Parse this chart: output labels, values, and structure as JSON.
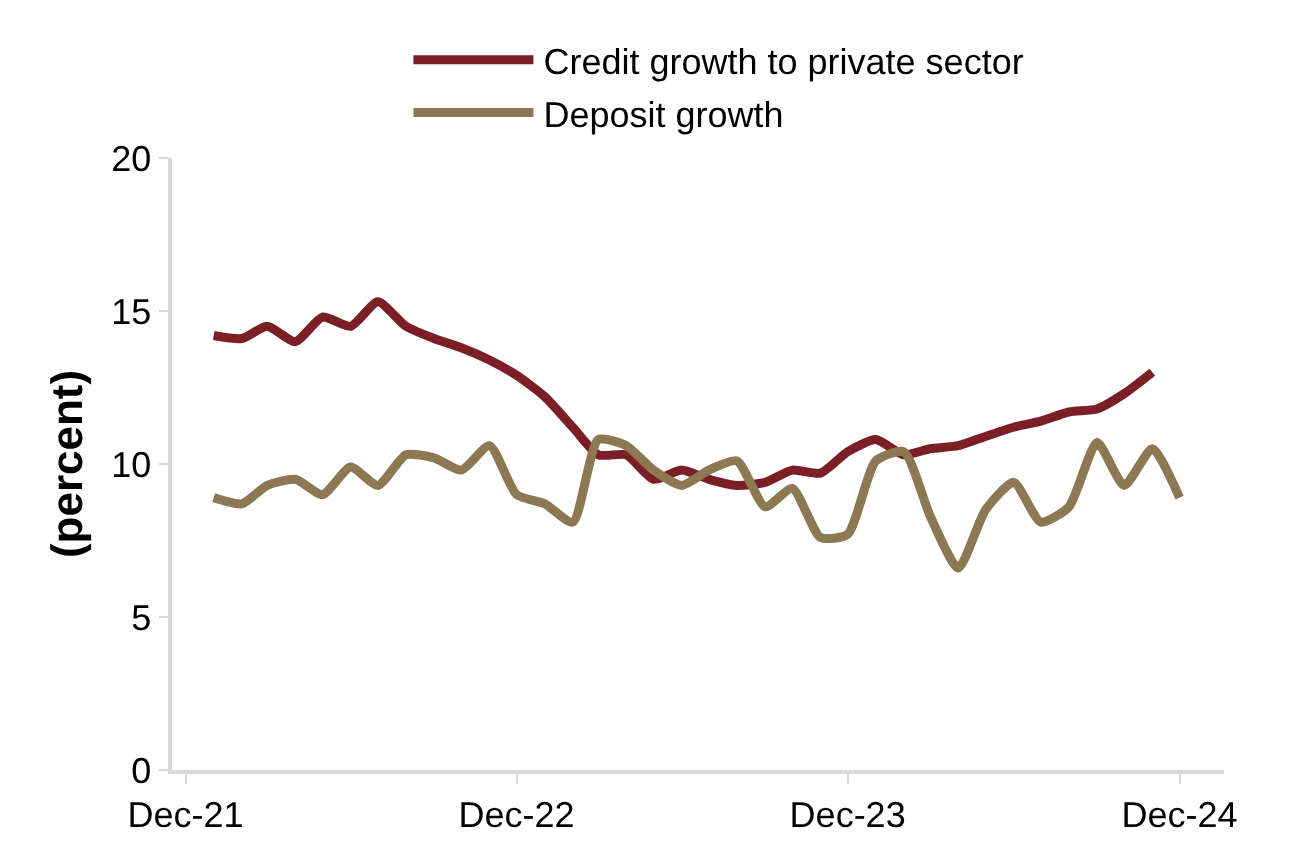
{
  "chart_data": {
    "type": "line",
    "ylabel": "(percent)",
    "x": [
      "2022-01",
      "2022-02",
      "2022-03",
      "2022-04",
      "2022-05",
      "2022-06",
      "2022-07",
      "2022-08",
      "2022-09",
      "2022-10",
      "2022-11",
      "2022-12",
      "2023-01",
      "2023-02",
      "2023-03",
      "2023-04",
      "2023-05",
      "2023-06",
      "2023-07",
      "2023-08",
      "2023-09",
      "2023-10",
      "2023-11",
      "2023-12",
      "2024-01",
      "2024-02",
      "2024-03",
      "2024-04",
      "2024-05",
      "2024-06",
      "2024-07",
      "2024-08",
      "2024-09",
      "2024-10",
      "2024-11",
      "2024-12"
    ],
    "series": [
      {
        "name": "Credit growth to private sector",
        "color": "#7b1e26",
        "values": [
          14.2,
          14.1,
          14.5,
          14.0,
          14.8,
          14.5,
          15.3,
          14.5,
          14.1,
          13.8,
          13.4,
          12.9,
          12.2,
          11.2,
          10.3,
          10.3,
          9.5,
          9.8,
          9.5,
          9.3,
          9.4,
          9.8,
          9.7,
          10.4,
          10.8,
          10.3,
          10.5,
          10.6,
          10.9,
          11.2,
          11.4,
          11.7,
          11.8,
          12.3,
          13.0,
          null
        ]
      },
      {
        "name": "Deposit growth",
        "color": "#8c7853",
        "values": [
          8.9,
          8.7,
          9.3,
          9.5,
          9.0,
          9.9,
          9.3,
          10.3,
          10.2,
          9.8,
          10.6,
          9.0,
          8.7,
          8.1,
          10.8,
          10.6,
          9.8,
          9.3,
          9.8,
          10.1,
          8.6,
          9.2,
          7.6,
          7.7,
          10.1,
          10.4,
          8.3,
          6.6,
          8.5,
          9.4,
          8.1,
          8.6,
          10.7,
          9.3,
          10.5,
          8.9
        ]
      }
    ],
    "xlim": [
      "2021-11-16",
      "2025-01-19"
    ],
    "xticks": [
      {
        "value": "2021-12-01",
        "label": "Dec-21"
      },
      {
        "value": "2022-12-01",
        "label": "Dec-22"
      },
      {
        "value": "2023-12-01",
        "label": "Dec-23"
      },
      {
        "value": "2024-12-01",
        "label": "Dec-24"
      }
    ],
    "ylim": [
      0,
      20
    ],
    "yticks": [
      0,
      5,
      10,
      15,
      20
    ],
    "legend": "top",
    "marker": "none",
    "line_style": "solid"
  }
}
